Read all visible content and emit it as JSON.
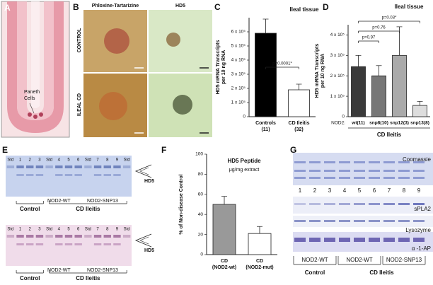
{
  "panels": {
    "A": {
      "letter": "A",
      "annotation": [
        "Paneth",
        "Cells"
      ]
    },
    "B": {
      "letter": "B",
      "stains": [
        "Phloxine-Tartarizine",
        "HD5"
      ],
      "rows": [
        "CONTROL",
        "ILEAL CD"
      ]
    },
    "E": {
      "letter": "E",
      "gels": [
        {
          "lanes": [
            "Std",
            "1",
            "2",
            "3",
            "Std",
            "4",
            "5",
            "6",
            "Std",
            "7",
            "8",
            "9",
            "Std"
          ],
          "groups": [
            "Control",
            "CD Ileitis"
          ],
          "subgroups": [
            "NOD2-WT",
            "NOD2-SNP13"
          ],
          "marker": "HD5"
        },
        {
          "lanes": [
            "Std",
            "1",
            "2",
            "3",
            "Std",
            "4",
            "5",
            "6",
            "Std",
            "7",
            "8",
            "9",
            "Std"
          ],
          "groups": [
            "Control",
            "CD Ileitis"
          ],
          "subgroups": [
            "NOD2-WT",
            "NOD2-SNP13"
          ],
          "marker": "HD5"
        }
      ]
    },
    "G": {
      "letter": "G",
      "blots": [
        "Coomassie",
        "sPLA2",
        "Lysozyme",
        "α -1-AP"
      ],
      "lanes": [
        "1",
        "2",
        "3",
        "4",
        "5",
        "6",
        "7",
        "8",
        "9"
      ],
      "subgroups": [
        "NOD2-WT",
        "NOD2-WT",
        "NOD2-SNP13"
      ],
      "groups": [
        "Control",
        "CD Ileitis"
      ]
    }
  },
  "chart_data": [
    {
      "type": "bar",
      "letter": "C",
      "title": "Ileal tissue",
      "ylabel": [
        "HD5 mRNA Transcripts",
        "per 10 ng RNA"
      ],
      "categories": [
        "Controls",
        "CD Ileitis"
      ],
      "category_notes": [
        "(11)",
        "(32)"
      ],
      "values": [
        590000,
        190000
      ],
      "errors": [
        100000,
        40000
      ],
      "colors": [
        "#000000",
        "#ffffff"
      ],
      "ylim": [
        0,
        700000
      ],
      "yticks": [
        0,
        {
          "value": 100000,
          "label": "1 x 10⁵"
        },
        {
          "value": 200000,
          "label": "2 x 10⁵"
        },
        {
          "value": 300000,
          "label": "3 x 10⁵"
        },
        {
          "value": 400000,
          "label": "4 x 10⁵"
        },
        {
          "value": 500000,
          "label": "5 x 10⁵"
        },
        {
          "value": 600000,
          "label": "6 x 10⁵"
        }
      ],
      "annotations": [
        "p=0.0001*"
      ]
    },
    {
      "type": "bar",
      "letter": "D",
      "title": "Ileal tissue",
      "ylabel": [
        "HD5 mRNA Transcripts",
        "per 10 ng RNA"
      ],
      "category_prefix": "NOD2:",
      "categories": [
        "wt(11)",
        "snp8(10)",
        "snp12(3)",
        "snp13(8)"
      ],
      "xlabel": "CD Ileitis",
      "values": [
        245000,
        200000,
        300000,
        55000
      ],
      "errors": [
        55000,
        50000,
        140000,
        20000
      ],
      "colors": [
        "#3a3a3a",
        "#777777",
        "#aaaaaa",
        "#dddddd"
      ],
      "ylim": [
        0,
        450000
      ],
      "yticks": [
        0,
        {
          "value": 100000,
          "label": "1 x 10⁵"
        },
        {
          "value": 200000,
          "label": "2 x 10⁵"
        },
        {
          "value": 300000,
          "label": "3 x 10⁵"
        },
        {
          "value": 400000,
          "label": "4 x 10⁵"
        }
      ],
      "annotations": [
        "p=0.97",
        "p=0.76",
        "p=0.03*"
      ]
    },
    {
      "type": "bar",
      "letter": "F",
      "title": "HD5 Peptide",
      "subtitle": "μg/mg extract",
      "ylabel": [
        "% of Non-disease Control"
      ],
      "categories": [
        "CD",
        "CD"
      ],
      "category_notes": [
        "(NOD2-wt)",
        "(NOD2-mut)"
      ],
      "values": [
        50,
        21
      ],
      "errors": [
        8,
        7
      ],
      "colors": [
        "#999999",
        "#ffffff"
      ],
      "ylim": [
        0,
        100
      ],
      "yticks": [
        0,
        20,
        40,
        60,
        80,
        100
      ]
    }
  ]
}
